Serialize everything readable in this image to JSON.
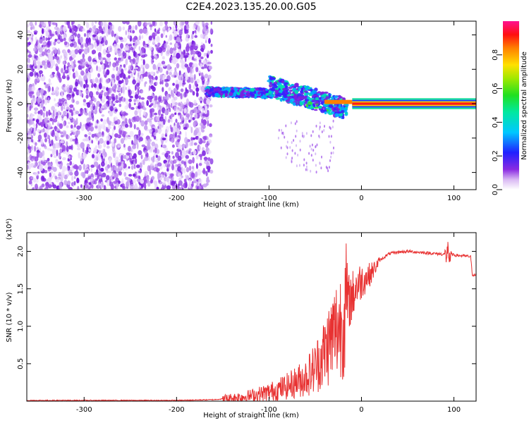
{
  "title": "C2E4.2023.135.20.00.G05",
  "chart_data": [
    {
      "type": "heatmap",
      "xlabel": "Height of straight line (km)",
      "ylabel": "Frequency (Hz)",
      "xlim": [
        -362,
        124
      ],
      "ylim": [
        -50,
        48
      ],
      "x_ticks": [
        -300,
        -200,
        -100,
        0,
        100
      ],
      "y_ticks": [
        -40,
        -20,
        0,
        20,
        40
      ],
      "colorbar": {
        "label": "Normalized spectral amplitude",
        "range": [
          0,
          1
        ],
        "ticks": [
          0.0,
          0.2,
          0.4,
          0.6,
          0.8
        ]
      },
      "regions": [
        {
          "x_range": [
            -362,
            -162
          ],
          "freq_range": [
            -50,
            48
          ],
          "amplitude": 0.1
        },
        {
          "x_range": [
            -168,
            -100
          ],
          "freq_center": [
            7,
            6
          ],
          "amplitude": 0.35
        },
        {
          "x_range": [
            -100,
            -15
          ],
          "freq_center": [
            10,
            -3
          ],
          "amplitude": 0.4
        },
        {
          "x_range": [
            -40,
            -10
          ],
          "freq_center": [
            1,
            1
          ],
          "amplitude": 0.9
        },
        {
          "x_range": [
            -10,
            124
          ],
          "freq_center": [
            0,
            0
          ],
          "amplitude": 1.0
        }
      ]
    },
    {
      "type": "line",
      "xlabel": "Height of straight line (km)",
      "ylabel": "SNR (10 * v/v)",
      "exponent_label": "(x10⁴)",
      "xlim": [
        -362,
        124
      ],
      "ylim": [
        0,
        2.25
      ],
      "x_ticks": [
        -300,
        -200,
        -100,
        0,
        100
      ],
      "y_ticks": [
        0.5,
        1.0,
        1.5,
        2.0
      ],
      "y_tick_labels": [
        "0.5",
        "1.0",
        "1.5",
        "2.0"
      ],
      "series_color": "#e83232",
      "series": [
        {
          "x": [
            -362,
            -300,
            -200,
            -160,
            -140,
            -120,
            -100,
            -80,
            -60,
            -50,
            -40,
            -30,
            -20,
            -15,
            -10,
            -5,
            0,
            10,
            20,
            30,
            40,
            50,
            60,
            70,
            80,
            90,
            95,
            100,
            110,
            118,
            120,
            124
          ],
          "y": [
            0.01,
            0.01,
            0.01,
            0.02,
            0.04,
            0.07,
            0.12,
            0.2,
            0.32,
            0.45,
            0.65,
            0.9,
            1.1,
            1.3,
            1.4,
            1.55,
            1.6,
            1.7,
            1.88,
            1.97,
            1.99,
            2.0,
            1.99,
            1.98,
            1.97,
            1.96,
            1.97,
            1.95,
            1.94,
            1.93,
            1.69,
            1.68
          ]
        }
      ]
    }
  ]
}
